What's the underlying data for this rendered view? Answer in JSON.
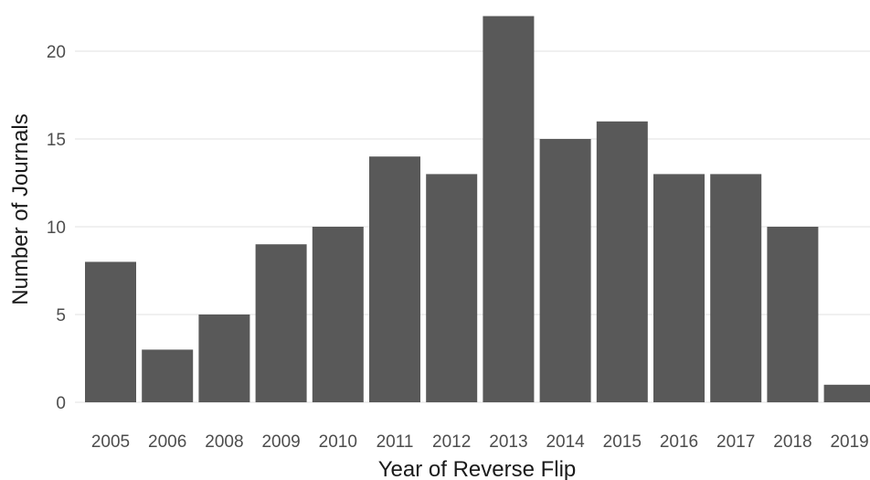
{
  "chart_data": {
    "type": "bar",
    "title": "",
    "xlabel": "Year of Reverse Flip",
    "ylabel": "Number of Journals",
    "categories": [
      "2005",
      "2006",
      "2008",
      "2009",
      "2010",
      "2011",
      "2012",
      "2013",
      "2014",
      "2015",
      "2016",
      "2017",
      "2018",
      "2019"
    ],
    "values": [
      8,
      3,
      5,
      9,
      10,
      14,
      13,
      22,
      15,
      16,
      13,
      13,
      10,
      1
    ],
    "yticks": [
      "0",
      "5",
      "10",
      "15",
      "20"
    ],
    "ylim": [
      0,
      22
    ],
    "grid": true,
    "bar_color": "#595959",
    "grid_color": "#ebebeb",
    "text_color": "#4d4d4d"
  }
}
